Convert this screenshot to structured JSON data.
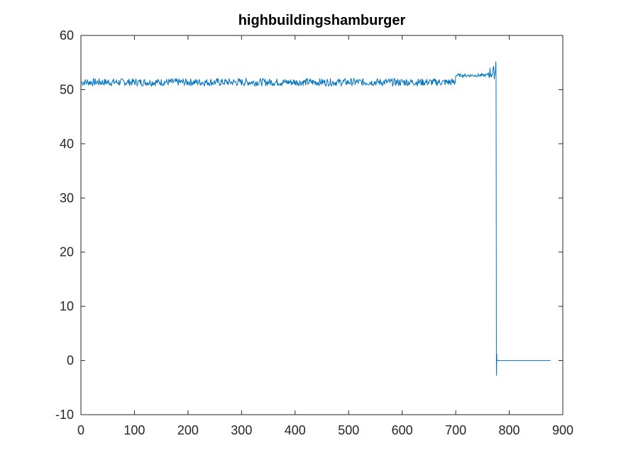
{
  "chart_data": {
    "type": "line",
    "title": "highbuildingshamburger",
    "xlabel": "",
    "ylabel": "",
    "xlim": [
      0,
      900
    ],
    "ylim": [
      -10,
      60
    ],
    "xticks": [
      0,
      100,
      200,
      300,
      400,
      500,
      600,
      700,
      800,
      900
    ],
    "yticks": [
      -10,
      0,
      10,
      20,
      30,
      40,
      50,
      60
    ],
    "grid": false,
    "legend": "none",
    "line_color": "#0072BD",
    "series": [
      {
        "x_start": 1,
        "x_end": 877,
        "segments": [
          {
            "x_range": [
              1,
              700
            ],
            "level": 51.3,
            "noise": 0.7,
            "note": "jittery plateau"
          },
          {
            "x_range": [
              700,
              760
            ],
            "level": 52.6,
            "noise": 0.3,
            "note": "flatter plateau"
          },
          {
            "x_range": [
              760,
              775
            ],
            "level": 53.0,
            "noise": 1.2,
            "note": "spikes up to ~55"
          },
          {
            "x_range": [
              775,
              777
            ],
            "values": [
              55.2,
              52.0,
              30.0,
              0.0,
              -2.8,
              1.2,
              0.0
            ]
          },
          {
            "x_range": [
              777,
              877
            ],
            "level": 0.0,
            "noise": 0.0
          }
        ]
      }
    ]
  }
}
